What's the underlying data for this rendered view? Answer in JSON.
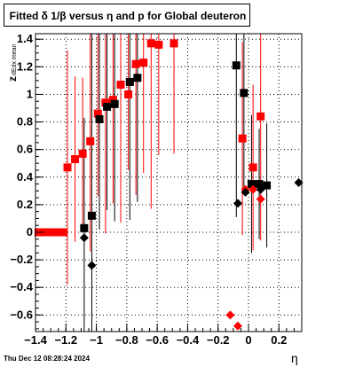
{
  "title": "Fitted δ 1/β versus η and p for Global deuteron",
  "footer": "Thu Dec 12 08:28:24 2024",
  "chart_data": {
    "type": "scatter",
    "title": "Fitted δ 1/β versus η and p for Global deuteron",
    "xlabel": "η",
    "ylabel": "z_{dEdx mean}",
    "xlim": [
      -1.4,
      0.35
    ],
    "ylim": [
      -0.72,
      1.44
    ],
    "xticks": [
      -1.4,
      -1.2,
      -1.0,
      -0.8,
      -0.6,
      -0.4,
      -0.2,
      0,
      0.2
    ],
    "xtick_labels": [
      "−1.4",
      "−1.2",
      "−1",
      "−0.8",
      "−0.6",
      "−0.4",
      "−0.2",
      "0",
      "0.2"
    ],
    "yticks": [
      -0.6,
      -0.4,
      -0.2,
      0,
      0.2,
      0.4,
      0.6,
      0.8,
      1.0,
      1.2,
      1.4
    ],
    "ytick_labels": [
      "−0.6",
      "−0.4",
      "−0.2",
      "0",
      "0.2",
      "0.4",
      "0.6",
      "0.8",
      "1",
      "1.2",
      "1.4"
    ],
    "grid": true,
    "colors": {
      "red": "#ff0000",
      "black": "#000000"
    },
    "series": [
      {
        "color": "#ff0000",
        "marker": "square",
        "points": [
          {
            "x": -1.38,
            "y": 0.0
          },
          {
            "x": -1.36,
            "y": 0.0
          },
          {
            "x": -1.34,
            "y": 0.0
          },
          {
            "x": -1.32,
            "y": 0.0
          },
          {
            "x": -1.3,
            "y": 0.0
          },
          {
            "x": -1.28,
            "y": 0.0
          },
          {
            "x": -1.26,
            "y": 0.0
          },
          {
            "x": -1.24,
            "y": 0.0
          },
          {
            "x": -1.22,
            "y": 0.0
          },
          {
            "x": -1.19,
            "y": 0.47,
            "err": 0.85
          },
          {
            "x": -1.14,
            "y": 0.53,
            "err": 0.6
          },
          {
            "x": -1.09,
            "y": 0.57,
            "err": 0.55
          },
          {
            "x": -1.04,
            "y": 0.66,
            "err": 0.8
          },
          {
            "x": -0.99,
            "y": 0.86,
            "err": 0.6
          },
          {
            "x": -0.94,
            "y": 0.94,
            "err": 0.95
          },
          {
            "x": -0.89,
            "y": 0.96,
            "err": 0.75
          },
          {
            "x": -0.84,
            "y": 1.07,
            "err": 1.0
          },
          {
            "x": -0.79,
            "y": 1.0,
            "err": 0.55
          },
          {
            "x": -0.74,
            "y": 1.22,
            "err": 0.95
          },
          {
            "x": -0.69,
            "y": 1.23,
            "err": 0.8
          },
          {
            "x": -0.64,
            "y": 1.37,
            "err": 1.2
          },
          {
            "x": -0.59,
            "y": 1.36,
            "err": 0.8
          },
          {
            "x": -0.49,
            "y": 1.37,
            "err": 0.8
          },
          {
            "x": -0.04,
            "y": 0.68,
            "err": 0.7
          },
          {
            "x": 0.03,
            "y": 0.47,
            "err": 0.6
          },
          {
            "x": 0.08,
            "y": 0.84,
            "err": 0.9
          }
        ]
      },
      {
        "color": "#000000",
        "marker": "square",
        "points": [
          {
            "x": -1.08,
            "y": 0.03,
            "err": 0.8
          },
          {
            "x": -1.03,
            "y": 0.12,
            "err": 1.5
          },
          {
            "x": -0.98,
            "y": 0.82,
            "err": 0.8
          },
          {
            "x": -0.93,
            "y": 0.91,
            "err": 0.75
          },
          {
            "x": -0.88,
            "y": 0.93,
            "err": 0.85
          },
          {
            "x": -0.78,
            "y": 1.09,
            "err": 1.0
          },
          {
            "x": -0.73,
            "y": 1.12,
            "err": 0.9
          },
          {
            "x": -0.08,
            "y": 1.21,
            "err": 1.1
          },
          {
            "x": -0.03,
            "y": 1.01,
            "err": 0.7
          },
          {
            "x": 0.02,
            "y": 0.35,
            "err": 0.5
          },
          {
            "x": 0.07,
            "y": 0.35,
            "err": 0.4
          },
          {
            "x": 0.12,
            "y": 0.34,
            "err": 0.45
          }
        ]
      },
      {
        "color": "#ff0000",
        "marker": "diamond",
        "points": [
          {
            "x": -0.12,
            "y": -0.6
          },
          {
            "x": -0.07,
            "y": -0.68
          },
          {
            "x": -0.02,
            "y": 0.31
          },
          {
            "x": 0.03,
            "y": 0.31
          },
          {
            "x": 0.08,
            "y": 0.24
          }
        ]
      },
      {
        "color": "#000000",
        "marker": "diamond",
        "points": [
          {
            "x": -1.08,
            "y": -0.04
          },
          {
            "x": -1.03,
            "y": -0.24
          },
          {
            "x": -0.07,
            "y": 0.21
          },
          {
            "x": -0.02,
            "y": 0.29
          },
          {
            "x": 0.08,
            "y": 0.31
          },
          {
            "x": 0.33,
            "y": 0.36
          }
        ]
      }
    ]
  }
}
